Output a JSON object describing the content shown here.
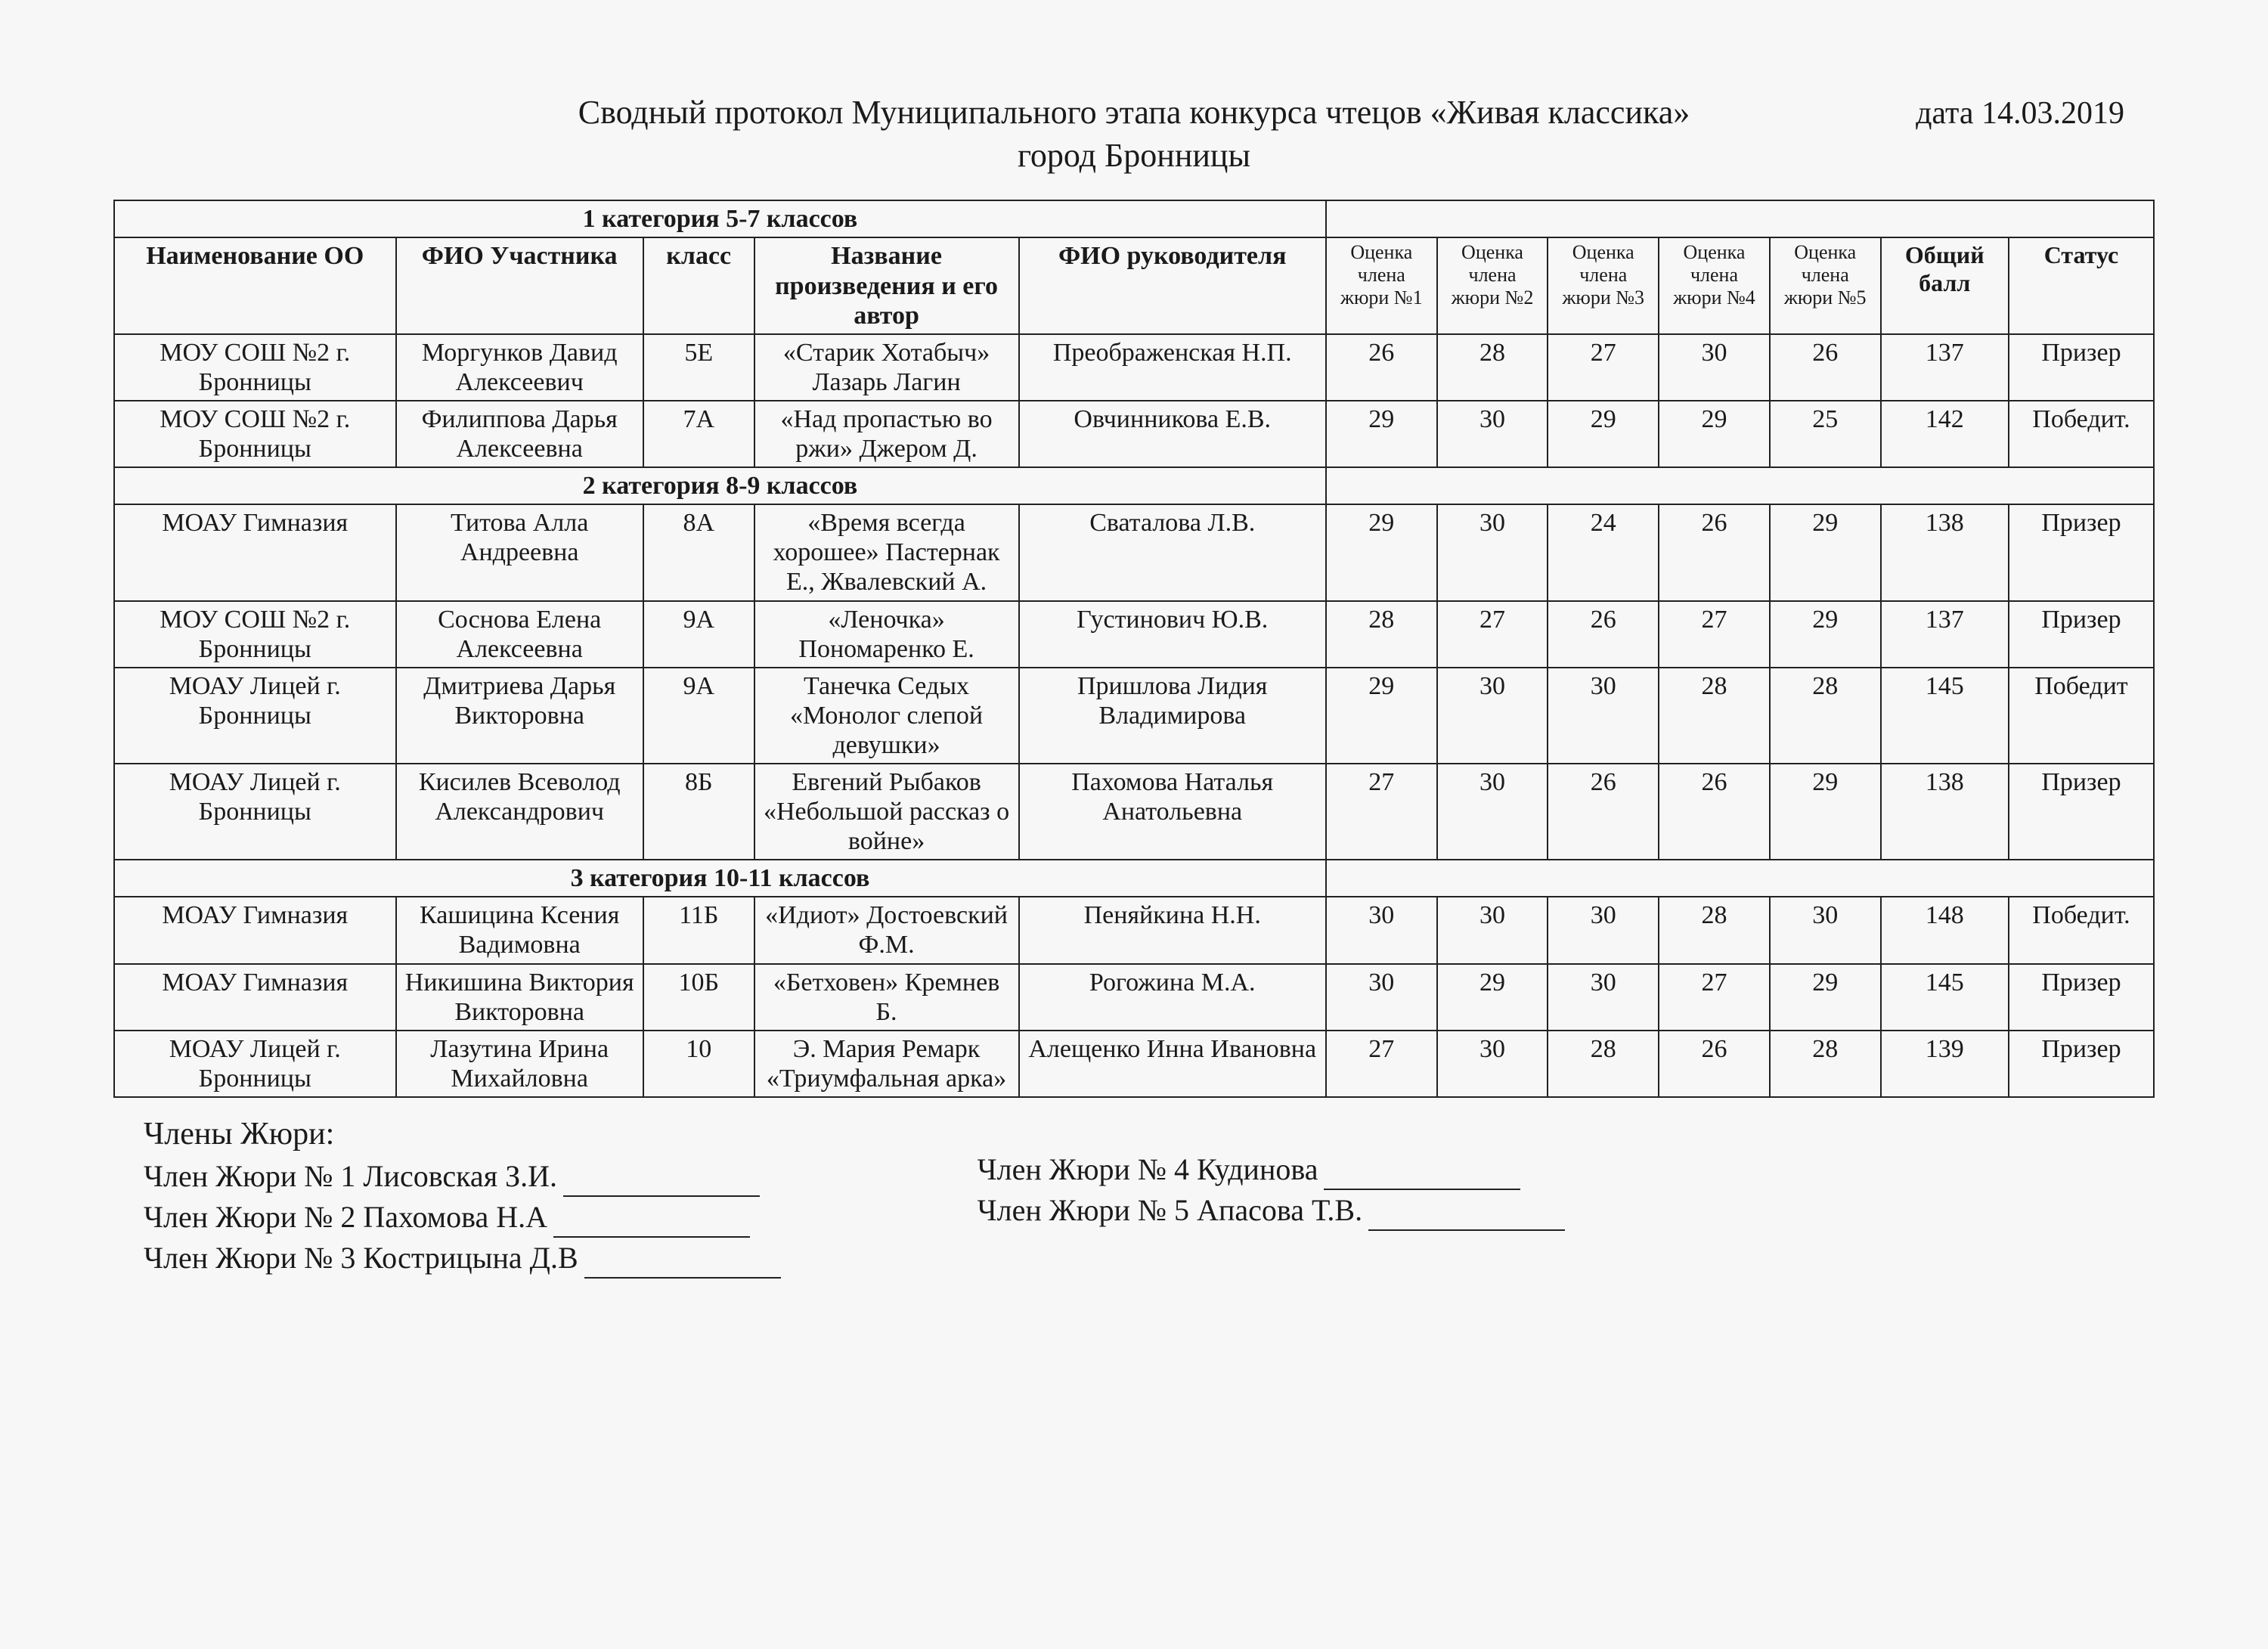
{
  "header": {
    "title_line1": "Сводный протокол Муниципального этапа конкурса чтецов «Живая классика»",
    "title_line2": "город Бронницы",
    "date": "дата 14.03.2019"
  },
  "columns": {
    "org": "Наименование ОО",
    "participant": "ФИО Участника",
    "class": "класс",
    "work": "Название произведения и его автор",
    "teacher": "ФИО руководителя",
    "j1": "Оценка члена жюри №1",
    "j2": "Оценка члена жюри №2",
    "j3": "Оценка члена жюри №3",
    "j4": "Оценка члена жюри №4",
    "j5": "Оценка члена жюри №5",
    "total": "Общий балл",
    "status": "Статус"
  },
  "cat1": {
    "label": "1 категория 5-7 классов",
    "rows": [
      {
        "org": "МОУ СОШ №2 г. Бронницы",
        "participant": "Моргунков Давид Алексеевич",
        "class": "5Е",
        "work": "«Старик Хотабыч» Лазарь Лагин",
        "teacher": "Преображенская Н.П.",
        "j1": "26",
        "j2": "28",
        "j3": "27",
        "j4": "30",
        "j5": "26",
        "total": "137",
        "status": "Призер"
      },
      {
        "org": "МОУ СОШ №2 г. Бронницы",
        "participant": "Филиппова Дарья Алексеевна",
        "class": "7А",
        "work": "«Над пропастью во ржи» Джером Д.",
        "teacher": "Овчинникова Е.В.",
        "j1": "29",
        "j2": "30",
        "j3": "29",
        "j4": "29",
        "j5": "25",
        "total": "142",
        "status": "Победит."
      }
    ]
  },
  "cat2": {
    "label": "2 категория 8-9 классов",
    "rows": [
      {
        "org": "МОАУ Гимназия",
        "participant": "Титова Алла Андреевна",
        "class": "8А",
        "work": "«Время всегда хорошее» Пастернак Е., Жвалевский А.",
        "teacher": "Сваталова Л.В.",
        "j1": "29",
        "j2": "30",
        "j3": "24",
        "j4": "26",
        "j5": "29",
        "total": "138",
        "status": "Призер"
      },
      {
        "org": "МОУ СОШ №2 г. Бронницы",
        "participant": "Соснова Елена Алексеевна",
        "class": "9А",
        "work": "«Леночка» Пономаренко Е.",
        "teacher": "Густинович Ю.В.",
        "j1": "28",
        "j2": "27",
        "j3": "26",
        "j4": "27",
        "j5": "29",
        "total": "137",
        "status": "Призер"
      },
      {
        "org": "МОАУ Лицей г. Бронницы",
        "participant": "Дмитриева Дарья Викторовна",
        "class": "9А",
        "work": "Танечка Седых «Монолог слепой девушки»",
        "teacher": "Пришлова Лидия Владимирова",
        "j1": "29",
        "j2": "30",
        "j3": "30",
        "j4": "28",
        "j5": "28",
        "total": "145",
        "status": "Победит"
      },
      {
        "org": "МОАУ Лицей г. Бронницы",
        "participant": "Кисилев Всеволод Александрович",
        "class": "8Б",
        "work": "Евгений Рыбаков «Небольшой рассказ о войне»",
        "teacher": "Пахомова Наталья Анатольевна",
        "j1": "27",
        "j2": "30",
        "j3": "26",
        "j4": "26",
        "j5": "29",
        "total": "138",
        "status": "Призер"
      }
    ]
  },
  "cat3": {
    "label": "3 категория 10-11 классов",
    "rows": [
      {
        "org": "МОАУ Гимназия",
        "participant": "Кашицина Ксения Вадимовна",
        "class": "11Б",
        "work": "«Идиот» Достоевский Ф.М.",
        "teacher": "Пеняйкина Н.Н.",
        "j1": "30",
        "j2": "30",
        "j3": "30",
        "j4": "28",
        "j5": "30",
        "total": "148",
        "status": "Победит."
      },
      {
        "org": "МОАУ Гимназия",
        "participant": "Никишина Виктория Викторовна",
        "class": "10Б",
        "work": "«Бетховен» Кремнев Б.",
        "teacher": "Рогожина М.А.",
        "j1": "30",
        "j2": "29",
        "j3": "30",
        "j4": "27",
        "j5": "29",
        "total": "145",
        "status": "Призер"
      },
      {
        "org": "МОАУ Лицей г. Бронницы",
        "participant": "Лазутина Ирина Михайловна",
        "class": "10",
        "work": "Э. Мария Ремарк «Триумфальная арка»",
        "teacher": "Алещенко Инна Ивановна",
        "j1": "27",
        "j2": "30",
        "j3": "28",
        "j4": "26",
        "j5": "28",
        "total": "139",
        "status": "Призер"
      }
    ]
  },
  "jury": {
    "header": "Члены Жюри:",
    "left": [
      "Член Жюри № 1 Лисовская З.И.",
      "Член Жюри № 2 Пахомова Н.А",
      "Член Жюри № 3 Кострицына Д.В"
    ],
    "right": [
      "Член Жюри № 4 Кудинова",
      "Член Жюри № 5 Апасова Т.В."
    ]
  }
}
